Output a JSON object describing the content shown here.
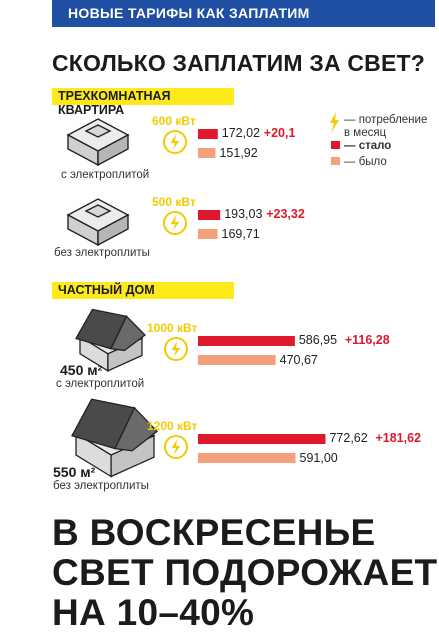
{
  "header": {
    "tag": "НОВЫЕ ТАРИФЫ КАК ЗАПЛАТИМ"
  },
  "headline": "СКОЛЬКО ЗАПЛАТИМ ЗА СВЕТ?",
  "sections": [
    {
      "title": "ТРЕХКОМНАТНАЯ КВАРТИРА"
    },
    {
      "title": "ЧАСТНЫЙ ДОМ"
    }
  ],
  "legend": {
    "consumption": "— потребление в месяц",
    "became": "— стало",
    "was": "— было"
  },
  "colors": {
    "became": "#e0182d",
    "was": "#f4a07c",
    "accent": "#fee91a",
    "blue": "#1f4fa2",
    "kwt": "#f2cb00"
  },
  "chart_data": {
    "type": "bar",
    "series": [
      {
        "name": "стало",
        "values": [
          172.02,
          193.03,
          586.95,
          772.62
        ]
      },
      {
        "name": "было",
        "values": [
          151.92,
          169.71,
          470.67,
          591.0
        ]
      }
    ],
    "rows": [
      {
        "consumption": "600 кВт",
        "label": "с электроплитой",
        "area": "",
        "became": "172,02",
        "was": "151,92",
        "delta": "+20,1"
      },
      {
        "consumption": "500 кВт",
        "label": "без электроплиты",
        "area": "",
        "became": "193,03",
        "was": "169,71",
        "delta": "+23,32"
      },
      {
        "consumption": "1000 кВт",
        "label": "с электроплитой",
        "area": "450 м²",
        "became": "586,95",
        "was": "470,67",
        "delta": "+116,28"
      },
      {
        "consumption": "1200 кВт",
        "label": "без электроплиты",
        "area": "550 м²",
        "became": "772,62",
        "was": "591,00",
        "delta": "+181,62"
      }
    ]
  },
  "bottom": {
    "line1": "В ВОСКРЕСЕНЬЕ",
    "line2": "СВЕТ ПОДОРОЖАЕТ",
    "line3": "НА 10–40%"
  }
}
